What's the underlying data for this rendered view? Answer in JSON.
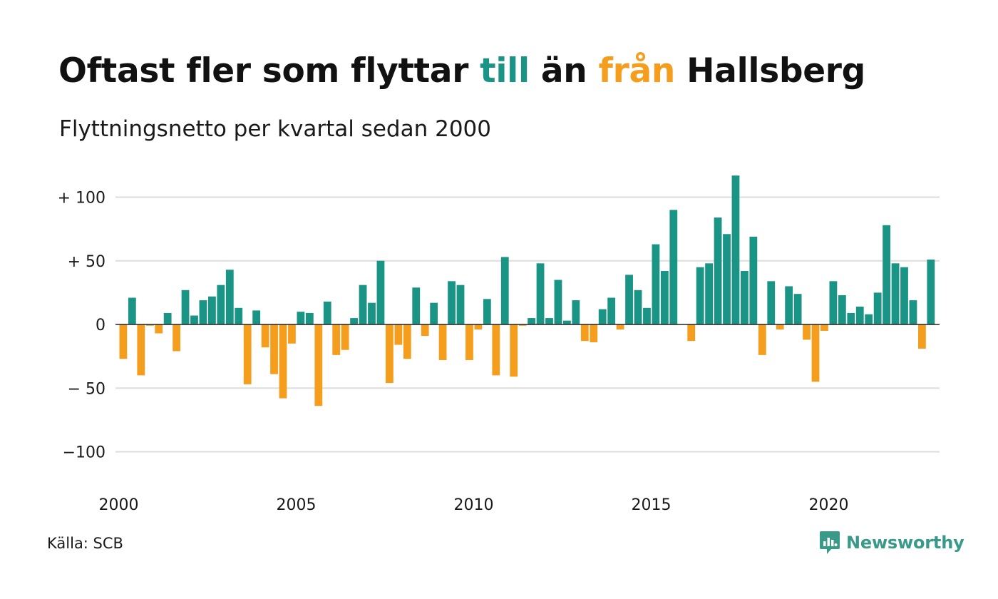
{
  "title": {
    "part1": "Oftast fler som flyttar ",
    "highlight_in": "till",
    "part2": " än ",
    "highlight_out": "från",
    "part3": " Hallsberg"
  },
  "subtitle": "Flyttningsnetto per kvartal sedan 2000",
  "source": "Källa: SCB",
  "brand": {
    "name": "Newsworthy",
    "icon": "newsworthy-logo-icon"
  },
  "colors": {
    "positive": "#1a9485",
    "negative": "#f59d1d",
    "grid": "#dddddd",
    "zero": "#222222",
    "brand": "#3a9a89"
  },
  "chart_data": {
    "type": "bar",
    "title": "Oftast fler som flyttar till än från Hallsberg",
    "subtitle": "Flyttningsnetto per kvartal sedan 2000",
    "xlabel": "",
    "ylabel": "",
    "ylim": [
      -125,
      120
    ],
    "yticks": [
      {
        "value": 100,
        "label": "+ 100"
      },
      {
        "value": 50,
        "label": "+  50"
      },
      {
        "value": 0,
        "label": "0"
      },
      {
        "value": -50,
        "label": "− 50"
      },
      {
        "value": -100,
        "label": "−100"
      }
    ],
    "xticks": [
      "2000",
      "2005",
      "2010",
      "2015",
      "2020"
    ],
    "x_start": "2000 Q1",
    "grid": true,
    "positive_color": "#1a9485",
    "negative_color": "#f59d1d",
    "values": [
      -27,
      21,
      -40,
      -1,
      -7,
      9,
      -21,
      27,
      7,
      19,
      22,
      31,
      43,
      13,
      -47,
      11,
      -18,
      -39,
      -58,
      -15,
      10,
      9,
      -64,
      18,
      -24,
      -20,
      5,
      31,
      17,
      50,
      -46,
      -16,
      -27,
      29,
      -9,
      17,
      -28,
      34,
      31,
      -28,
      -4,
      20,
      -40,
      53,
      -41,
      -1,
      5,
      48,
      5,
      35,
      3,
      19,
      -13,
      -14,
      12,
      21,
      -4,
      39,
      27,
      13,
      63,
      42,
      90,
      0,
      -13,
      45,
      48,
      84,
      71,
      117,
      42,
      69,
      -24,
      34,
      -4,
      30,
      24,
      -12,
      -45,
      -5,
      34,
      23,
      9,
      14,
      8,
      25,
      78,
      48,
      45,
      19,
      -19,
      51
    ]
  }
}
